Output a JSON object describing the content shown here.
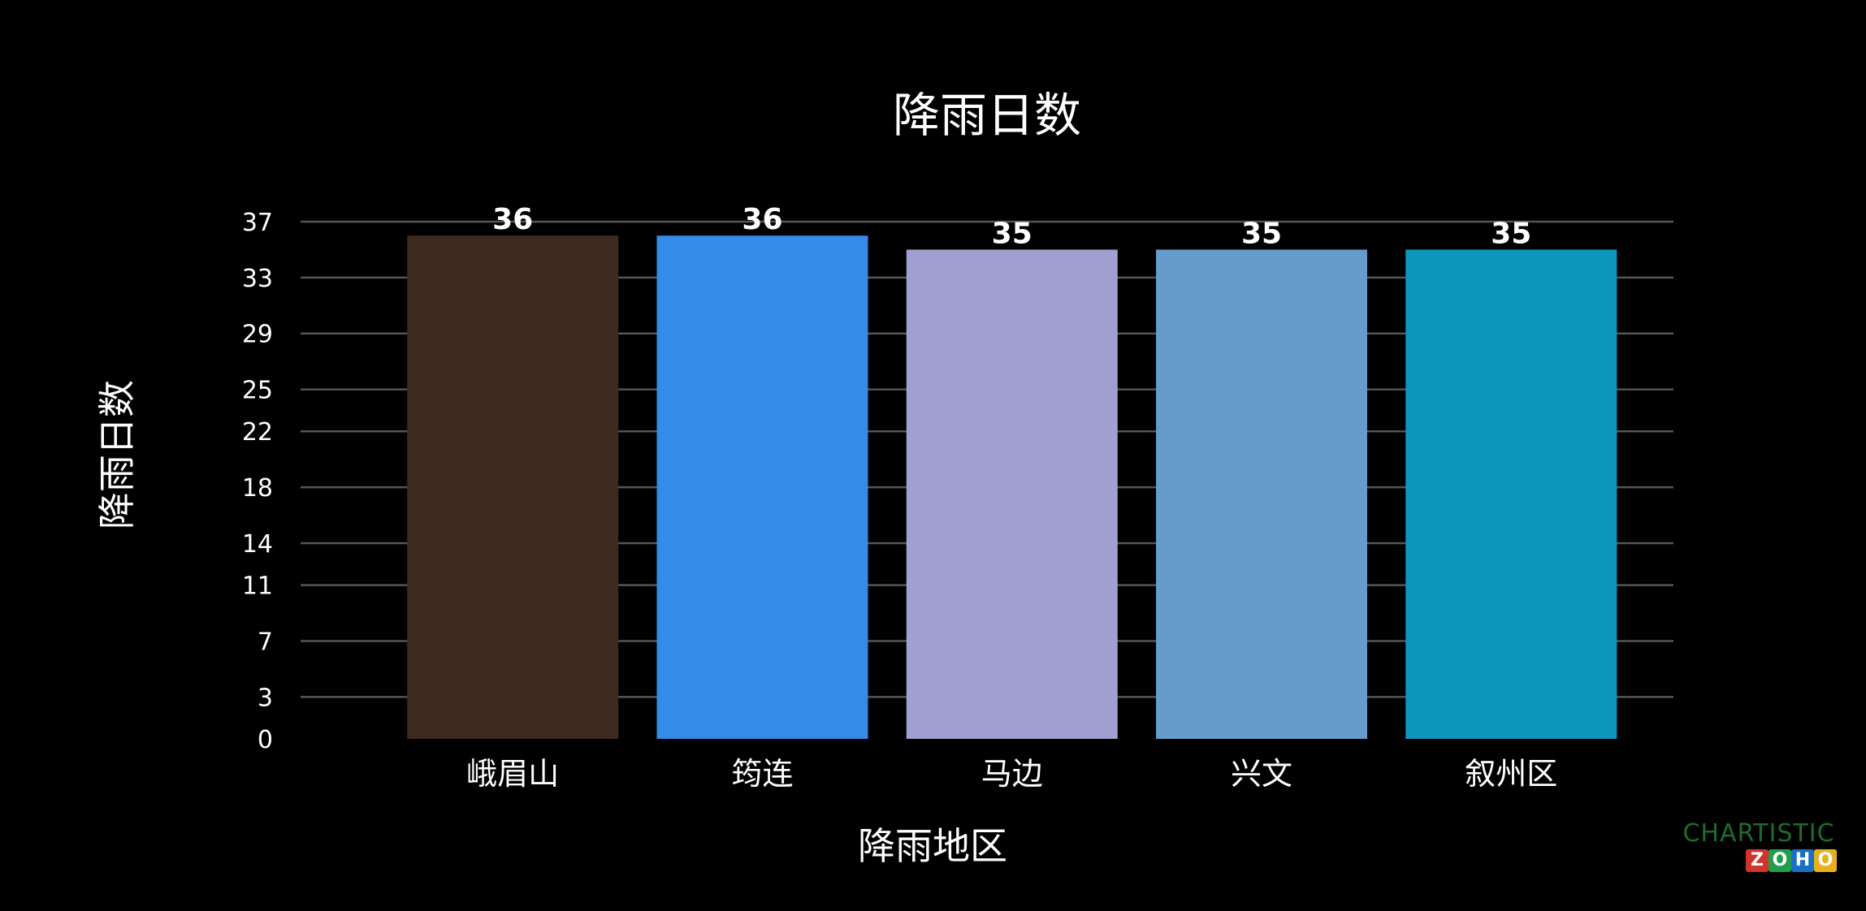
{
  "chart_data": {
    "type": "bar",
    "title": "降雨日数",
    "xlabel": "降雨地区",
    "ylabel": "降雨日数",
    "categories": [
      "峨眉山",
      "筠连",
      "马边",
      "兴文",
      "叙州区"
    ],
    "values": [
      36,
      36,
      35,
      35,
      35
    ],
    "data_labels": [
      "36",
      "36",
      "35",
      "35",
      "35"
    ],
    "bar_colors": [
      "#3d2b20",
      "#348be8",
      "#a0a1d1",
      "#659bcd",
      "#0e97bc"
    ],
    "ylim": [
      0,
      37
    ],
    "yticks": [
      0,
      3,
      7,
      11,
      14,
      18,
      22,
      25,
      29,
      33,
      37
    ],
    "grid": true,
    "legend": "none",
    "background": "#000000",
    "gridline_color": "#555555"
  },
  "watermark": {
    "top_text": "CHARTISTIC",
    "bottom_letters": [
      {
        "char": "Z",
        "color": "#d0342c"
      },
      {
        "char": "O",
        "color": "#229e4b"
      },
      {
        "char": "H",
        "color": "#1a6fc6"
      },
      {
        "char": "O",
        "color": "#e8b11b"
      }
    ]
  }
}
